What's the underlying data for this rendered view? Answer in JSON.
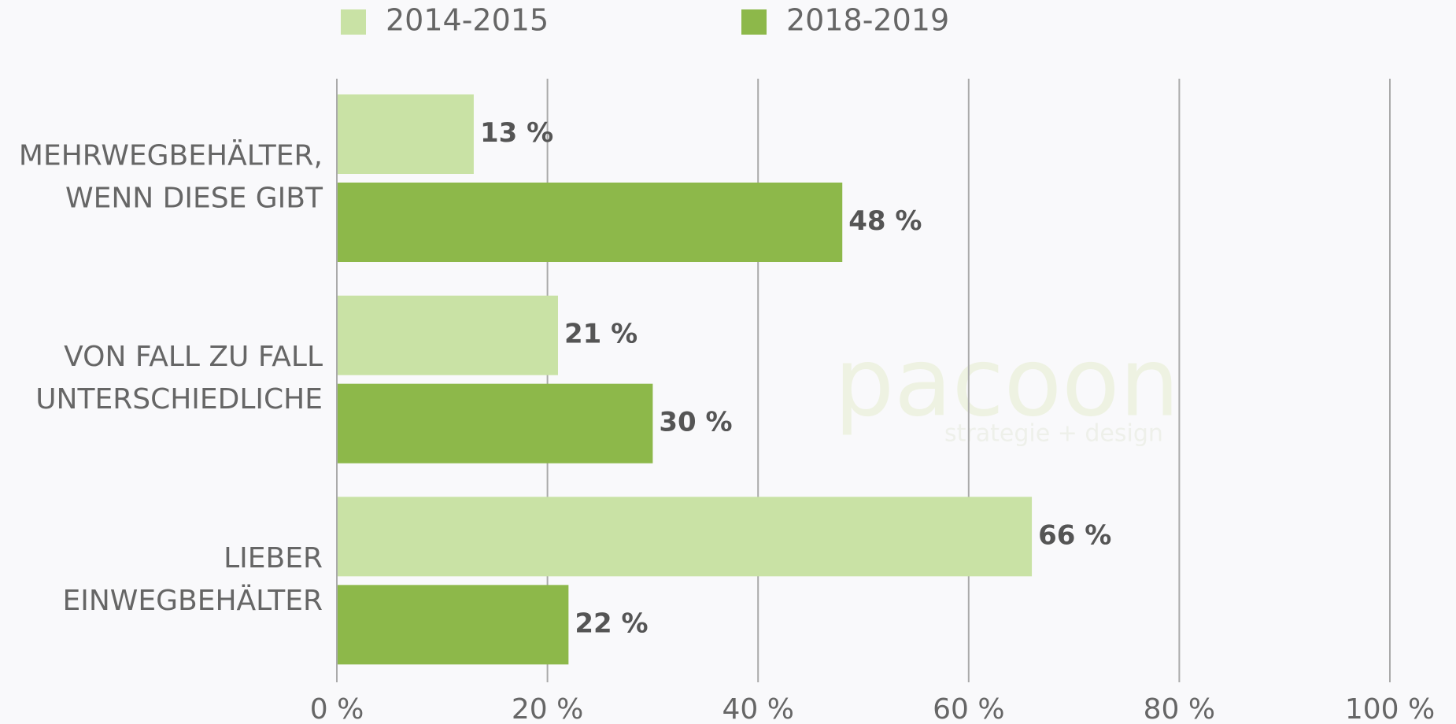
{
  "chart_data": {
    "type": "hbar",
    "categories": [
      [
        "MEHRWEGBEHÄLTER,",
        "WENN DIESE GIBT"
      ],
      [
        "VON FALL ZU FALL",
        "UNTERSCHIEDLICHE"
      ],
      [
        "LIEBER",
        "EINWEGBEHÄLTER"
      ]
    ],
    "series": [
      {
        "name": "2014-2015",
        "color": "#c9e2a5",
        "values": [
          13,
          21,
          66
        ],
        "value_labels": [
          "13 %",
          "21 %",
          "66 %"
        ]
      },
      {
        "name": "2018-2019",
        "color": "#8db84a",
        "values": [
          48,
          30,
          22
        ],
        "value_labels": [
          "48 %",
          "30 %",
          "22 %"
        ]
      }
    ],
    "xlim": [
      0,
      100
    ],
    "xticks": [
      {
        "value": 0,
        "label": "0 %"
      },
      {
        "value": 20,
        "label": "20 %"
      },
      {
        "value": 40,
        "label": "40 %"
      },
      {
        "value": 60,
        "label": "60 %"
      },
      {
        "value": 80,
        "label": "80 %"
      },
      {
        "value": 100,
        "label": "100 %"
      }
    ],
    "grid": true,
    "legend": "top",
    "watermark": [
      "pacoon",
      "strategie + design"
    ]
  }
}
